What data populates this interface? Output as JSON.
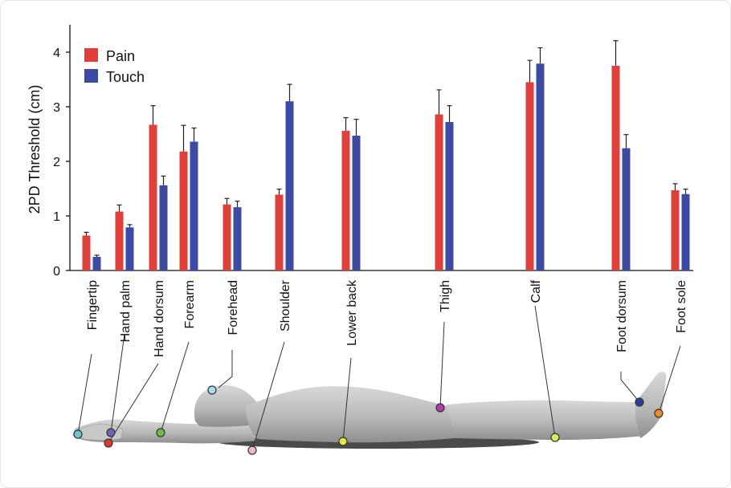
{
  "chart_data": {
    "type": "bar",
    "ylabel": "2PD Threshold (cm)",
    "ylim": [
      0,
      4.5
    ],
    "yticks": [
      0,
      1,
      2,
      3,
      4
    ],
    "legend_position": "top-left",
    "grid": false,
    "categories": [
      "Fingertip",
      "Hand palm",
      "Hand dorsum",
      "Forearm",
      "Forehead",
      "Shoulder",
      "Lower back",
      "Thigh",
      "Calf",
      "Foot dorsum",
      "Foot sole"
    ],
    "series": [
      {
        "name": "Pain",
        "color": "#e0403c",
        "values": [
          0.64,
          1.08,
          2.67,
          2.18,
          1.21,
          1.39,
          2.56,
          2.86,
          3.45,
          3.75,
          1.47
        ],
        "errors": [
          0.06,
          0.12,
          0.35,
          0.48,
          0.11,
          0.1,
          0.24,
          0.45,
          0.4,
          0.46,
          0.12
        ]
      },
      {
        "name": "Touch",
        "color": "#3d4aa3",
        "values": [
          0.25,
          0.79,
          1.56,
          2.36,
          1.16,
          3.1,
          2.47,
          2.72,
          3.79,
          2.24,
          1.4
        ],
        "errors": [
          0.03,
          0.05,
          0.17,
          0.25,
          0.11,
          0.31,
          0.3,
          0.3,
          0.29,
          0.25,
          0.09
        ]
      }
    ]
  },
  "body_markers": [
    {
      "site": "Fingertip",
      "color": "#6fc7d6"
    },
    {
      "site": "Hand palm",
      "color": "#6f63b8"
    },
    {
      "site": "Hand dorsum",
      "color": "#d83a30"
    },
    {
      "site": "Forearm",
      "color": "#6cc04a"
    },
    {
      "site": "Forehead",
      "color": "#a8dff0"
    },
    {
      "site": "Shoulder",
      "color": "#f2b8c8"
    },
    {
      "site": "Lower back",
      "color": "#e6ea3c"
    },
    {
      "site": "Thigh",
      "color": "#b43ab0"
    },
    {
      "site": "Calf",
      "color": "#d6ec5a"
    },
    {
      "site": "Foot dorsum",
      "color": "#2b3fa0"
    },
    {
      "site": "Foot sole",
      "color": "#f08a2c"
    }
  ]
}
